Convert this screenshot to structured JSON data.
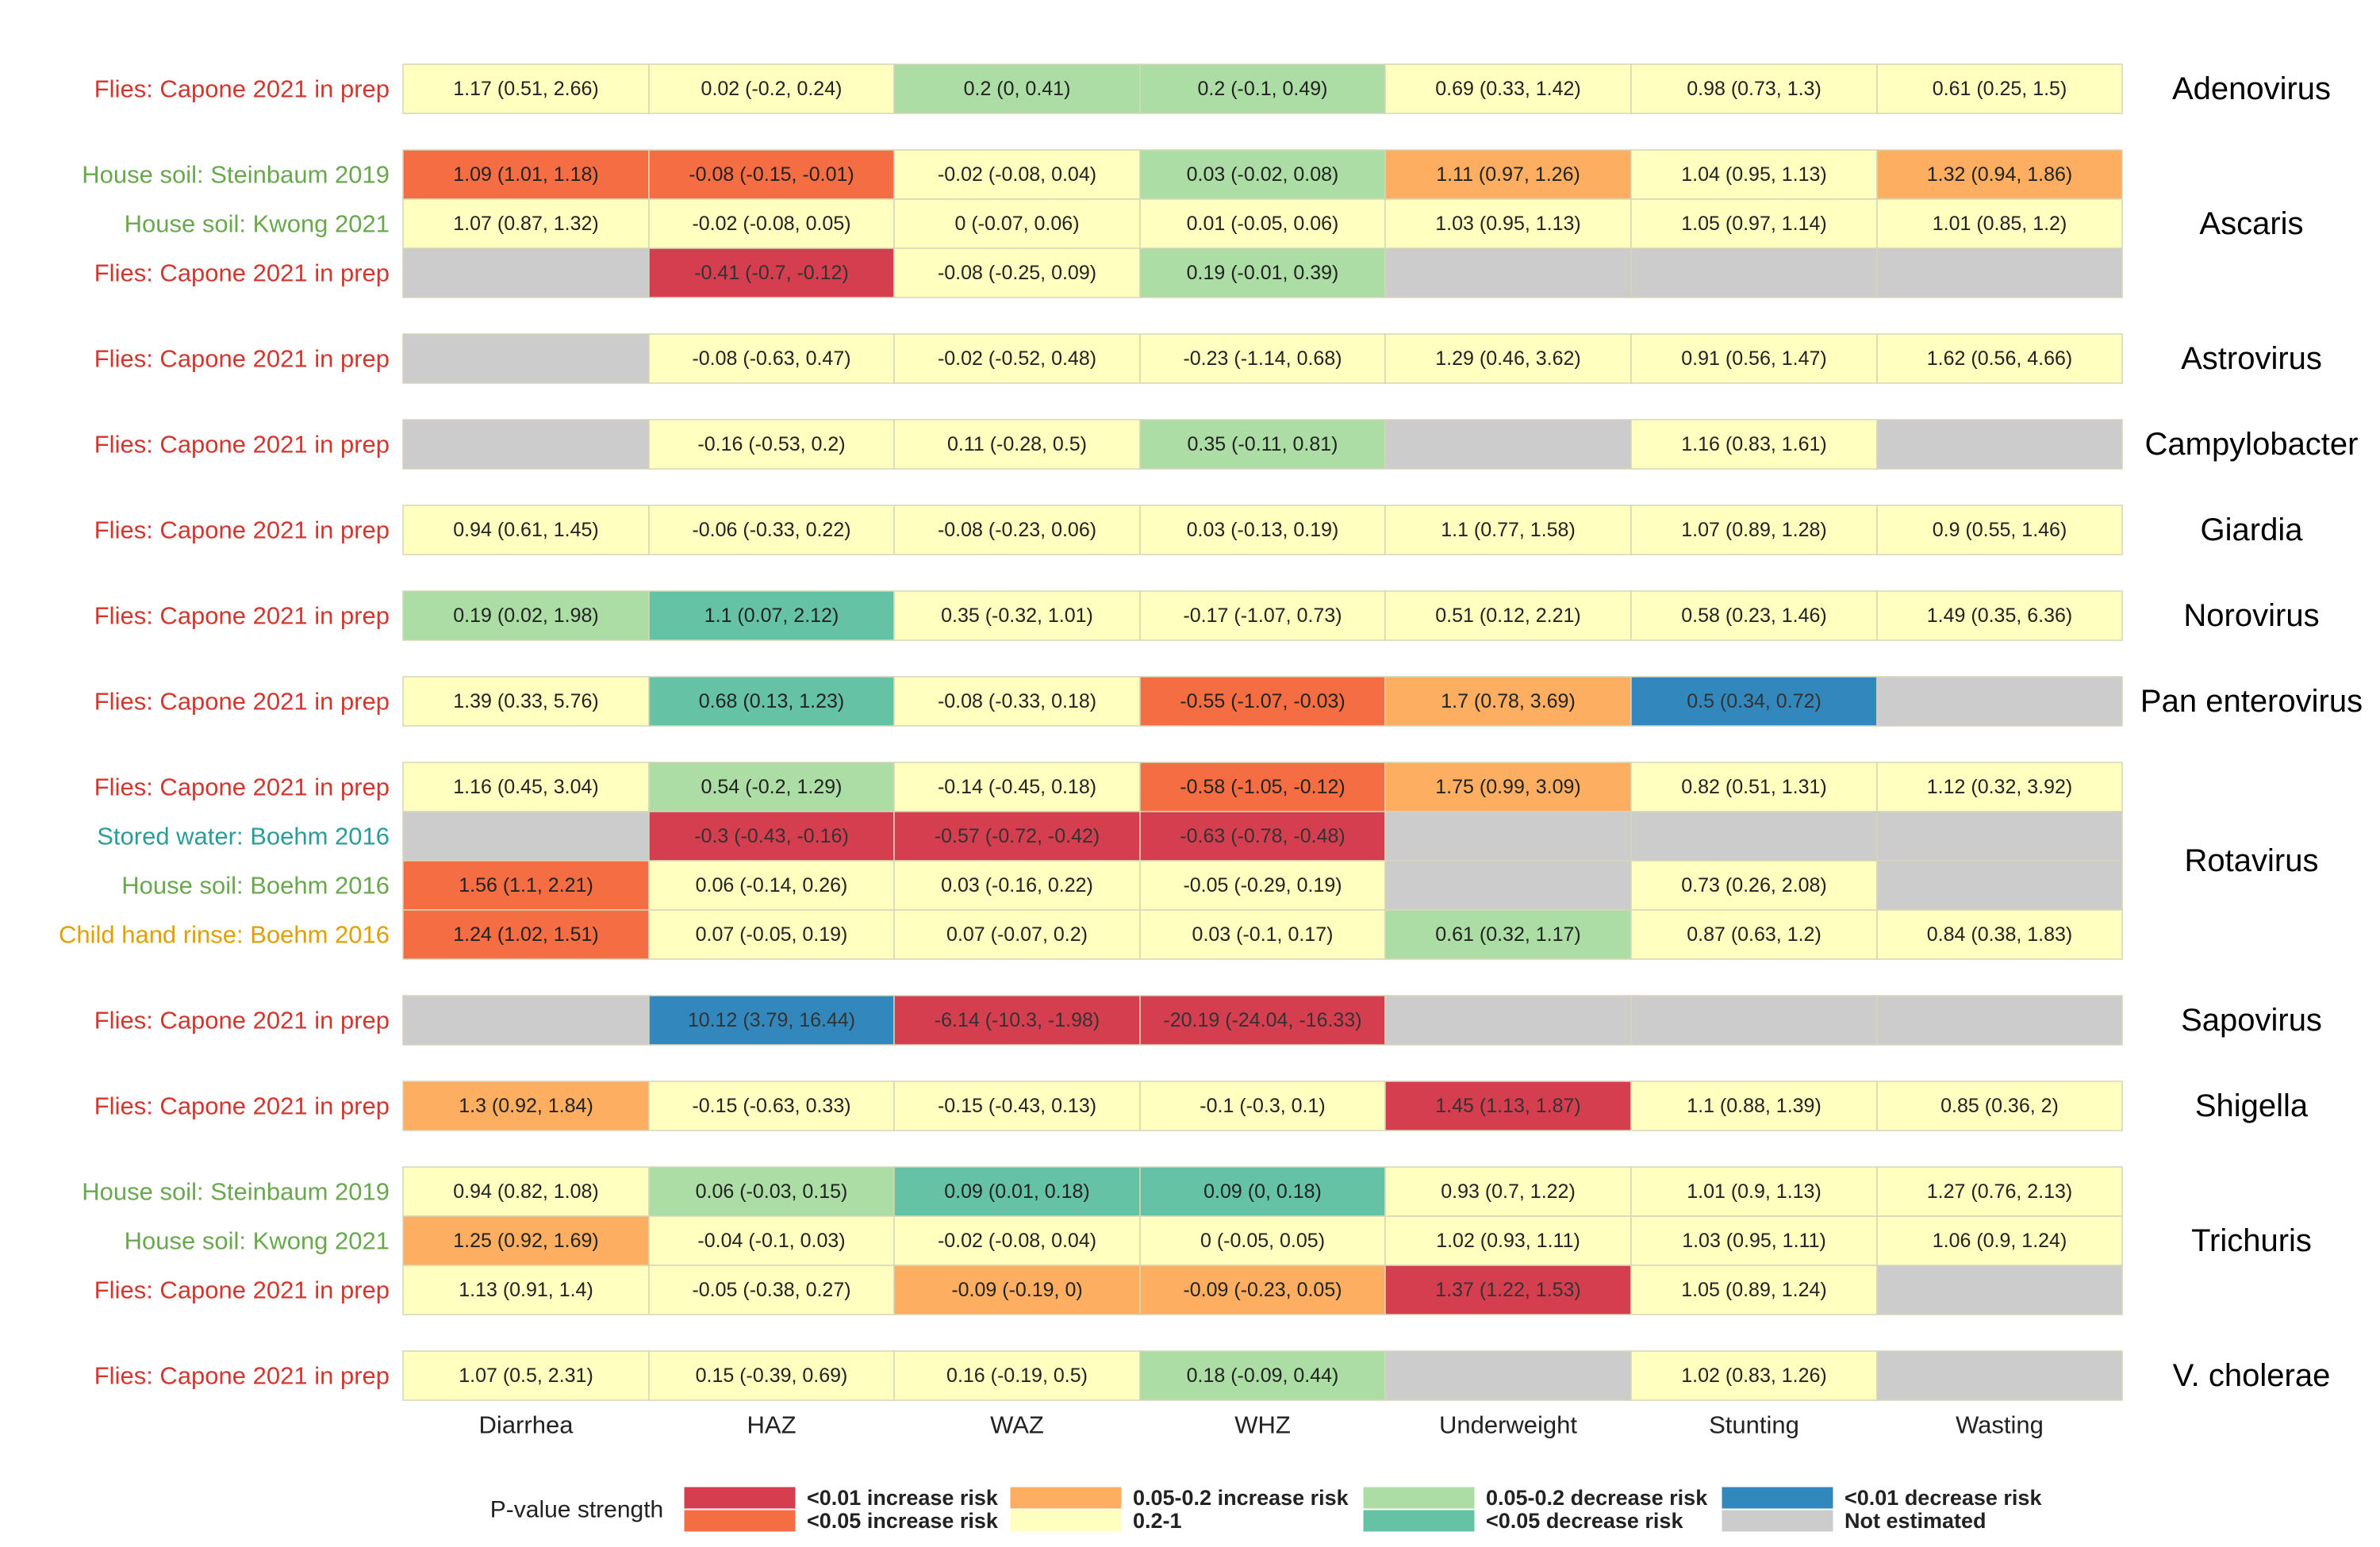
{
  "chart_data": {
    "type": "heatmap",
    "title": "",
    "columns": [
      "Diarrhea",
      "HAZ",
      "WAZ",
      "WHZ",
      "Underweight",
      "Stunting",
      "Wasting"
    ],
    "source_colors": {
      "Flies": "#d1372f",
      "House soil": "#6aa84f",
      "Stored water": "#2a9d9b",
      "Child hand rinse": "#e0a000"
    },
    "category_colors": {
      "inc01": "#d53e4f",
      "inc05": "#f46d43",
      "inc2": "#fdae61",
      "ns": "#ffffbf",
      "dec2": "#abdda4",
      "dec05": "#66c2a5",
      "dec01": "#3288bd",
      "na": "#cccccc"
    },
    "groups": [
      {
        "pathogen": "Adenovirus",
        "rows": [
          {
            "source": "Flies",
            "label": "Flies: Capone 2021 in prep",
            "cells": [
              {
                "v": "1.17 (0.51, 2.66)",
                "c": "ns"
              },
              {
                "v": "0.02 (-0.2, 0.24)",
                "c": "ns"
              },
              {
                "v": "0.2 (0, 0.41)",
                "c": "dec2"
              },
              {
                "v": "0.2 (-0.1, 0.49)",
                "c": "dec2"
              },
              {
                "v": "0.69 (0.33, 1.42)",
                "c": "ns"
              },
              {
                "v": "0.98 (0.73, 1.3)",
                "c": "ns"
              },
              {
                "v": "0.61 (0.25, 1.5)",
                "c": "ns"
              }
            ]
          }
        ]
      },
      {
        "pathogen": "Ascaris",
        "rows": [
          {
            "source": "House soil",
            "label": "House soil: Steinbaum 2019",
            "cells": [
              {
                "v": "1.09 (1.01, 1.18)",
                "c": "inc05"
              },
              {
                "v": "-0.08 (-0.15, -0.01)",
                "c": "inc05"
              },
              {
                "v": "-0.02 (-0.08, 0.04)",
                "c": "ns"
              },
              {
                "v": "0.03 (-0.02, 0.08)",
                "c": "dec2"
              },
              {
                "v": "1.11 (0.97, 1.26)",
                "c": "inc2"
              },
              {
                "v": "1.04 (0.95, 1.13)",
                "c": "ns"
              },
              {
                "v": "1.32 (0.94, 1.86)",
                "c": "inc2"
              }
            ]
          },
          {
            "source": "House soil",
            "label": "House soil: Kwong 2021",
            "cells": [
              {
                "v": "1.07 (0.87, 1.32)",
                "c": "ns"
              },
              {
                "v": "-0.02 (-0.08, 0.05)",
                "c": "ns"
              },
              {
                "v": "0 (-0.07, 0.06)",
                "c": "ns"
              },
              {
                "v": "0.01 (-0.05, 0.06)",
                "c": "ns"
              },
              {
                "v": "1.03 (0.95, 1.13)",
                "c": "ns"
              },
              {
                "v": "1.05 (0.97, 1.14)",
                "c": "ns"
              },
              {
                "v": "1.01 (0.85, 1.2)",
                "c": "ns"
              }
            ]
          },
          {
            "source": "Flies",
            "label": "Flies: Capone 2021 in prep",
            "cells": [
              {
                "v": "",
                "c": "na"
              },
              {
                "v": "-0.41 (-0.7, -0.12)",
                "c": "inc01"
              },
              {
                "v": "-0.08 (-0.25, 0.09)",
                "c": "ns"
              },
              {
                "v": "0.19 (-0.01, 0.39)",
                "c": "dec2"
              },
              {
                "v": "",
                "c": "na"
              },
              {
                "v": "",
                "c": "na"
              },
              {
                "v": "",
                "c": "na"
              }
            ]
          }
        ]
      },
      {
        "pathogen": "Astrovirus",
        "rows": [
          {
            "source": "Flies",
            "label": "Flies: Capone 2021 in prep",
            "cells": [
              {
                "v": "",
                "c": "na"
              },
              {
                "v": "-0.08 (-0.63, 0.47)",
                "c": "ns"
              },
              {
                "v": "-0.02 (-0.52, 0.48)",
                "c": "ns"
              },
              {
                "v": "-0.23 (-1.14, 0.68)",
                "c": "ns"
              },
              {
                "v": "1.29 (0.46, 3.62)",
                "c": "ns"
              },
              {
                "v": "0.91 (0.56, 1.47)",
                "c": "ns"
              },
              {
                "v": "1.62 (0.56, 4.66)",
                "c": "ns"
              }
            ]
          }
        ]
      },
      {
        "pathogen": "Campylobacter",
        "rows": [
          {
            "source": "Flies",
            "label": "Flies: Capone 2021 in prep",
            "cells": [
              {
                "v": "",
                "c": "na"
              },
              {
                "v": "-0.16 (-0.53, 0.2)",
                "c": "ns"
              },
              {
                "v": "0.11 (-0.28, 0.5)",
                "c": "ns"
              },
              {
                "v": "0.35 (-0.11, 0.81)",
                "c": "dec2"
              },
              {
                "v": "",
                "c": "na"
              },
              {
                "v": "1.16 (0.83, 1.61)",
                "c": "ns"
              },
              {
                "v": "",
                "c": "na"
              }
            ]
          }
        ]
      },
      {
        "pathogen": "Giardia",
        "rows": [
          {
            "source": "Flies",
            "label": "Flies: Capone 2021 in prep",
            "cells": [
              {
                "v": "0.94 (0.61, 1.45)",
                "c": "ns"
              },
              {
                "v": "-0.06 (-0.33, 0.22)",
                "c": "ns"
              },
              {
                "v": "-0.08 (-0.23, 0.06)",
                "c": "ns"
              },
              {
                "v": "0.03 (-0.13, 0.19)",
                "c": "ns"
              },
              {
                "v": "1.1 (0.77, 1.58)",
                "c": "ns"
              },
              {
                "v": "1.07 (0.89, 1.28)",
                "c": "ns"
              },
              {
                "v": "0.9 (0.55, 1.46)",
                "c": "ns"
              }
            ]
          }
        ]
      },
      {
        "pathogen": "Norovirus",
        "rows": [
          {
            "source": "Flies",
            "label": "Flies: Capone 2021 in prep",
            "cells": [
              {
                "v": "0.19 (0.02, 1.98)",
                "c": "dec2"
              },
              {
                "v": "1.1 (0.07, 2.12)",
                "c": "dec05"
              },
              {
                "v": "0.35 (-0.32, 1.01)",
                "c": "ns"
              },
              {
                "v": "-0.17 (-1.07, 0.73)",
                "c": "ns"
              },
              {
                "v": "0.51 (0.12, 2.21)",
                "c": "ns"
              },
              {
                "v": "0.58 (0.23, 1.46)",
                "c": "ns"
              },
              {
                "v": "1.49 (0.35, 6.36)",
                "c": "ns"
              }
            ]
          }
        ]
      },
      {
        "pathogen": "Pan enterovirus",
        "rows": [
          {
            "source": "Flies",
            "label": "Flies: Capone 2021 in prep",
            "cells": [
              {
                "v": "1.39 (0.33, 5.76)",
                "c": "ns"
              },
              {
                "v": "0.68 (0.13, 1.23)",
                "c": "dec05"
              },
              {
                "v": "-0.08 (-0.33, 0.18)",
                "c": "ns"
              },
              {
                "v": "-0.55 (-1.07, -0.03)",
                "c": "inc05"
              },
              {
                "v": "1.7 (0.78, 3.69)",
                "c": "inc2"
              },
              {
                "v": "0.5 (0.34, 0.72)",
                "c": "dec01"
              },
              {
                "v": "",
                "c": "na"
              }
            ]
          }
        ]
      },
      {
        "pathogen": "Rotavirus",
        "rows": [
          {
            "source": "Flies",
            "label": "Flies: Capone 2021 in prep",
            "cells": [
              {
                "v": "1.16 (0.45, 3.04)",
                "c": "ns"
              },
              {
                "v": "0.54 (-0.2, 1.29)",
                "c": "dec2"
              },
              {
                "v": "-0.14 (-0.45, 0.18)",
                "c": "ns"
              },
              {
                "v": "-0.58 (-1.05, -0.12)",
                "c": "inc05"
              },
              {
                "v": "1.75 (0.99, 3.09)",
                "c": "inc2"
              },
              {
                "v": "0.82 (0.51, 1.31)",
                "c": "ns"
              },
              {
                "v": "1.12 (0.32, 3.92)",
                "c": "ns"
              }
            ]
          },
          {
            "source": "Stored water",
            "label": "Stored water: Boehm 2016",
            "cells": [
              {
                "v": "",
                "c": "na"
              },
              {
                "v": "-0.3 (-0.43, -0.16)",
                "c": "inc01"
              },
              {
                "v": "-0.57 (-0.72, -0.42)",
                "c": "inc01"
              },
              {
                "v": "-0.63 (-0.78, -0.48)",
                "c": "inc01"
              },
              {
                "v": "",
                "c": "na"
              },
              {
                "v": "",
                "c": "na"
              },
              {
                "v": "",
                "c": "na"
              }
            ]
          },
          {
            "source": "House soil",
            "label": "House soil: Boehm 2016",
            "cells": [
              {
                "v": "1.56 (1.1, 2.21)",
                "c": "inc05"
              },
              {
                "v": "0.06 (-0.14, 0.26)",
                "c": "ns"
              },
              {
                "v": "0.03 (-0.16, 0.22)",
                "c": "ns"
              },
              {
                "v": "-0.05 (-0.29, 0.19)",
                "c": "ns"
              },
              {
                "v": "",
                "c": "na"
              },
              {
                "v": "0.73 (0.26, 2.08)",
                "c": "ns"
              },
              {
                "v": "",
                "c": "na"
              }
            ]
          },
          {
            "source": "Child hand rinse",
            "label": "Child hand rinse: Boehm 2016",
            "cells": [
              {
                "v": "1.24 (1.02, 1.51)",
                "c": "inc05"
              },
              {
                "v": "0.07 (-0.05, 0.19)",
                "c": "ns"
              },
              {
                "v": "0.07 (-0.07, 0.2)",
                "c": "ns"
              },
              {
                "v": "0.03 (-0.1, 0.17)",
                "c": "ns"
              },
              {
                "v": "0.61 (0.32, 1.17)",
                "c": "dec2"
              },
              {
                "v": "0.87 (0.63, 1.2)",
                "c": "ns"
              },
              {
                "v": "0.84 (0.38, 1.83)",
                "c": "ns"
              }
            ]
          }
        ]
      },
      {
        "pathogen": "Sapovirus",
        "rows": [
          {
            "source": "Flies",
            "label": "Flies: Capone 2021 in prep",
            "cells": [
              {
                "v": "",
                "c": "na"
              },
              {
                "v": "10.12 (3.79, 16.44)",
                "c": "dec01"
              },
              {
                "v": "-6.14 (-10.3, -1.98)",
                "c": "inc01"
              },
              {
                "v": "-20.19 (-24.04, -16.33)",
                "c": "inc01"
              },
              {
                "v": "",
                "c": "na"
              },
              {
                "v": "",
                "c": "na"
              },
              {
                "v": "",
                "c": "na"
              }
            ]
          }
        ]
      },
      {
        "pathogen": "Shigella",
        "rows": [
          {
            "source": "Flies",
            "label": "Flies: Capone 2021 in prep",
            "cells": [
              {
                "v": "1.3 (0.92, 1.84)",
                "c": "inc2"
              },
              {
                "v": "-0.15 (-0.63, 0.33)",
                "c": "ns"
              },
              {
                "v": "-0.15 (-0.43, 0.13)",
                "c": "ns"
              },
              {
                "v": "-0.1 (-0.3, 0.1)",
                "c": "ns"
              },
              {
                "v": "1.45 (1.13, 1.87)",
                "c": "inc01"
              },
              {
                "v": "1.1 (0.88, 1.39)",
                "c": "ns"
              },
              {
                "v": "0.85 (0.36, 2)",
                "c": "ns"
              }
            ]
          }
        ]
      },
      {
        "pathogen": "Trichuris",
        "rows": [
          {
            "source": "House soil",
            "label": "House soil: Steinbaum 2019",
            "cells": [
              {
                "v": "0.94 (0.82, 1.08)",
                "c": "ns"
              },
              {
                "v": "0.06 (-0.03, 0.15)",
                "c": "dec2"
              },
              {
                "v": "0.09 (0.01, 0.18)",
                "c": "dec05"
              },
              {
                "v": "0.09 (0, 0.18)",
                "c": "dec05"
              },
              {
                "v": "0.93 (0.7, 1.22)",
                "c": "ns"
              },
              {
                "v": "1.01 (0.9, 1.13)",
                "c": "ns"
              },
              {
                "v": "1.27 (0.76, 2.13)",
                "c": "ns"
              }
            ]
          },
          {
            "source": "House soil",
            "label": "House soil: Kwong 2021",
            "cells": [
              {
                "v": "1.25 (0.92, 1.69)",
                "c": "inc2"
              },
              {
                "v": "-0.04 (-0.1, 0.03)",
                "c": "ns"
              },
              {
                "v": "-0.02 (-0.08, 0.04)",
                "c": "ns"
              },
              {
                "v": "0 (-0.05, 0.05)",
                "c": "ns"
              },
              {
                "v": "1.02 (0.93, 1.11)",
                "c": "ns"
              },
              {
                "v": "1.03 (0.95, 1.11)",
                "c": "ns"
              },
              {
                "v": "1.06 (0.9, 1.24)",
                "c": "ns"
              }
            ]
          },
          {
            "source": "Flies",
            "label": "Flies: Capone 2021 in prep",
            "cells": [
              {
                "v": "1.13 (0.91, 1.4)",
                "c": "ns"
              },
              {
                "v": "-0.05 (-0.38, 0.27)",
                "c": "ns"
              },
              {
                "v": "-0.09 (-0.19, 0)",
                "c": "inc2"
              },
              {
                "v": "-0.09 (-0.23, 0.05)",
                "c": "inc2"
              },
              {
                "v": "1.37 (1.22, 1.53)",
                "c": "inc01"
              },
              {
                "v": "1.05 (0.89, 1.24)",
                "c": "ns"
              },
              {
                "v": "",
                "c": "na"
              }
            ]
          }
        ]
      },
      {
        "pathogen": "V. cholerae",
        "rows": [
          {
            "source": "Flies",
            "label": "Flies: Capone 2021 in prep",
            "cells": [
              {
                "v": "1.07 (0.5, 2.31)",
                "c": "ns"
              },
              {
                "v": "0.15 (-0.39, 0.69)",
                "c": "ns"
              },
              {
                "v": "0.16 (-0.19, 0.5)",
                "c": "ns"
              },
              {
                "v": "0.18 (-0.09, 0.44)",
                "c": "dec2"
              },
              {
                "v": "",
                "c": "na"
              },
              {
                "v": "1.02 (0.83, 1.26)",
                "c": "ns"
              },
              {
                "v": "",
                "c": "na"
              }
            ]
          }
        ]
      }
    ],
    "legend": {
      "title": "P-value strength",
      "placement": "bottom",
      "items": [
        {
          "key": "inc01",
          "label": "<0.01 increase risk"
        },
        {
          "key": "inc05",
          "label": "<0.05 increase risk"
        },
        {
          "key": "inc2",
          "label": "0.05-0.2 increase risk"
        },
        {
          "key": "ns",
          "label": "0.2-1"
        },
        {
          "key": "dec2",
          "label": "0.05-0.2 decrease risk"
        },
        {
          "key": "dec05",
          "label": "<0.05 decrease risk"
        },
        {
          "key": "dec01",
          "label": "<0.01 decrease risk"
        },
        {
          "key": "na",
          "label": "Not estimated"
        }
      ]
    }
  }
}
